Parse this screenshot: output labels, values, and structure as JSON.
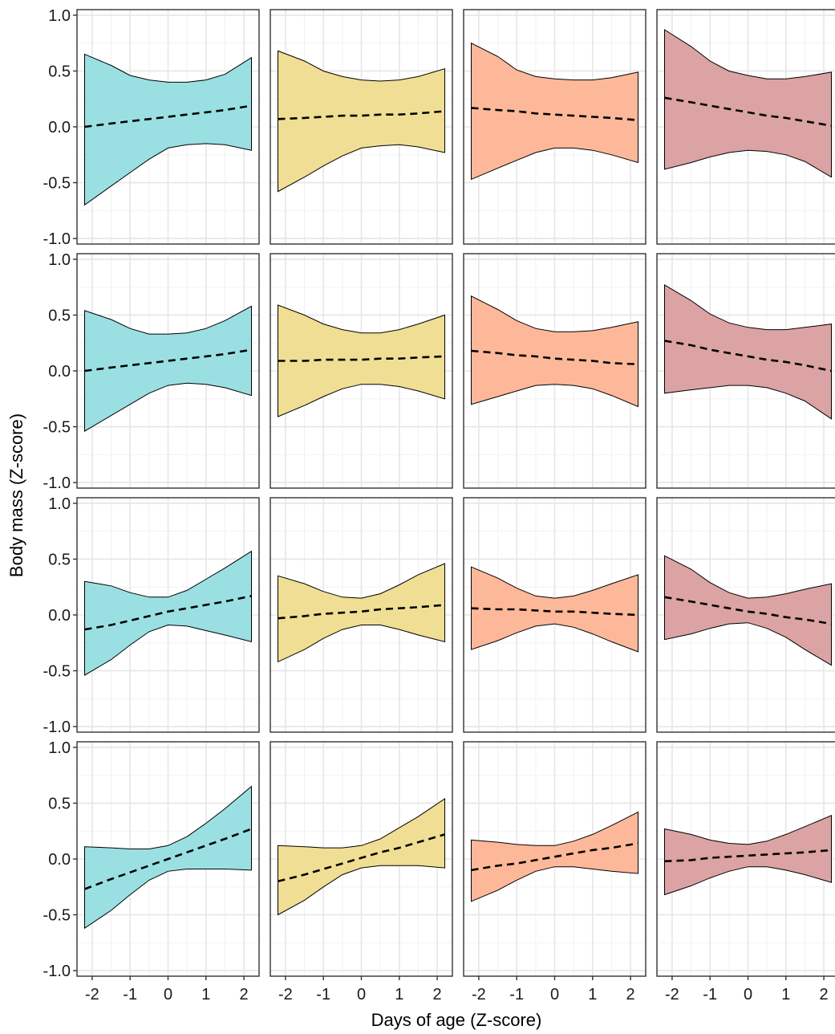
{
  "chart_data": {
    "type": "line",
    "layout": {
      "rows": 4,
      "cols": 4
    },
    "xlabel": "Days of age (Z-score)",
    "ylabel": "Body mass (Z-score)",
    "xlim": [
      -2.4,
      2.4
    ],
    "ylim": [
      -1.05,
      1.05
    ],
    "x_ticks": [
      -2,
      -1,
      0,
      1,
      2
    ],
    "x_tick_labels": [
      "-2",
      "-1",
      "0",
      "1",
      "2"
    ],
    "y_ticks": [
      -1,
      -0.5,
      0,
      0.5,
      1
    ],
    "y_tick_labels": [
      "-1.0",
      "-0.5",
      "0.0",
      "0.5",
      "1.0"
    ],
    "grid": true,
    "column_colors": [
      "#9ae0e3",
      "#f0de94",
      "#fdb89a",
      "#dba3a3"
    ],
    "line_color": "#000000",
    "panels": [
      [
        {
          "x": [
            -2.2,
            -1.5,
            -1.0,
            -0.5,
            0.0,
            0.5,
            1.0,
            1.5,
            2.2
          ],
          "fit": [
            0.0,
            0.03,
            0.05,
            0.07,
            0.09,
            0.11,
            0.13,
            0.15,
            0.19
          ],
          "lower": [
            -0.7,
            -0.53,
            -0.41,
            -0.29,
            -0.19,
            -0.16,
            -0.15,
            -0.16,
            -0.21
          ],
          "upper": [
            0.65,
            0.55,
            0.46,
            0.42,
            0.4,
            0.4,
            0.42,
            0.47,
            0.62
          ]
        },
        {
          "x": [
            -2.2,
            -1.5,
            -1.0,
            -0.5,
            0.0,
            0.5,
            1.0,
            1.5,
            2.2
          ],
          "fit": [
            0.07,
            0.08,
            0.09,
            0.1,
            0.1,
            0.11,
            0.11,
            0.12,
            0.14
          ],
          "lower": [
            -0.58,
            -0.45,
            -0.35,
            -0.26,
            -0.19,
            -0.17,
            -0.16,
            -0.18,
            -0.23
          ],
          "upper": [
            0.68,
            0.59,
            0.5,
            0.45,
            0.42,
            0.41,
            0.42,
            0.45,
            0.52
          ]
        },
        {
          "x": [
            -2.2,
            -1.5,
            -1.0,
            -0.5,
            0.0,
            0.5,
            1.0,
            1.5,
            2.2
          ],
          "fit": [
            0.17,
            0.15,
            0.14,
            0.12,
            0.11,
            0.1,
            0.09,
            0.08,
            0.06
          ],
          "lower": [
            -0.47,
            -0.37,
            -0.3,
            -0.23,
            -0.19,
            -0.19,
            -0.21,
            -0.25,
            -0.32
          ],
          "upper": [
            0.75,
            0.63,
            0.51,
            0.45,
            0.43,
            0.42,
            0.42,
            0.44,
            0.49
          ]
        },
        {
          "x": [
            -2.2,
            -1.5,
            -1.0,
            -0.5,
            0.0,
            0.5,
            1.0,
            1.5,
            2.2
          ],
          "fit": [
            0.26,
            0.22,
            0.19,
            0.16,
            0.13,
            0.1,
            0.08,
            0.05,
            0.01
          ],
          "lower": [
            -0.38,
            -0.32,
            -0.27,
            -0.23,
            -0.21,
            -0.22,
            -0.25,
            -0.31,
            -0.45
          ],
          "upper": [
            0.87,
            0.72,
            0.59,
            0.5,
            0.46,
            0.43,
            0.43,
            0.45,
            0.49
          ]
        }
      ],
      [
        {
          "x": [
            -2.2,
            -1.5,
            -1.0,
            -0.5,
            0.0,
            0.5,
            1.0,
            1.5,
            2.2
          ],
          "fit": [
            0.0,
            0.03,
            0.05,
            0.07,
            0.09,
            0.11,
            0.13,
            0.15,
            0.19
          ],
          "lower": [
            -0.54,
            -0.4,
            -0.3,
            -0.2,
            -0.13,
            -0.11,
            -0.12,
            -0.15,
            -0.22
          ],
          "upper": [
            0.54,
            0.46,
            0.38,
            0.33,
            0.33,
            0.34,
            0.38,
            0.45,
            0.58
          ]
        },
        {
          "x": [
            -2.2,
            -1.5,
            -1.0,
            -0.5,
            0.0,
            0.5,
            1.0,
            1.5,
            2.2
          ],
          "fit": [
            0.09,
            0.09,
            0.1,
            0.1,
            0.1,
            0.11,
            0.11,
            0.12,
            0.13
          ],
          "lower": [
            -0.41,
            -0.31,
            -0.23,
            -0.16,
            -0.12,
            -0.12,
            -0.14,
            -0.18,
            -0.25
          ],
          "upper": [
            0.59,
            0.5,
            0.42,
            0.37,
            0.34,
            0.34,
            0.37,
            0.42,
            0.5
          ]
        },
        {
          "x": [
            -2.2,
            -1.5,
            -1.0,
            -0.5,
            0.0,
            0.5,
            1.0,
            1.5,
            2.2
          ],
          "fit": [
            0.18,
            0.16,
            0.14,
            0.13,
            0.11,
            0.1,
            0.09,
            0.07,
            0.06
          ],
          "lower": [
            -0.3,
            -0.23,
            -0.18,
            -0.13,
            -0.12,
            -0.13,
            -0.16,
            -0.22,
            -0.32
          ],
          "upper": [
            0.67,
            0.55,
            0.45,
            0.38,
            0.35,
            0.35,
            0.36,
            0.39,
            0.44
          ]
        },
        {
          "x": [
            -2.2,
            -1.5,
            -1.0,
            -0.5,
            0.0,
            0.5,
            1.0,
            1.5,
            2.2
          ],
          "fit": [
            0.27,
            0.23,
            0.19,
            0.16,
            0.13,
            0.1,
            0.08,
            0.05,
            0.0
          ],
          "lower": [
            -0.2,
            -0.17,
            -0.15,
            -0.13,
            -0.13,
            -0.15,
            -0.2,
            -0.27,
            -0.43
          ],
          "upper": [
            0.77,
            0.63,
            0.51,
            0.43,
            0.39,
            0.37,
            0.37,
            0.39,
            0.42
          ]
        }
      ],
      [
        {
          "x": [
            -2.2,
            -1.5,
            -1.0,
            -0.5,
            0.0,
            0.5,
            1.0,
            1.5,
            2.2
          ],
          "fit": [
            -0.13,
            -0.09,
            -0.05,
            -0.01,
            0.03,
            0.06,
            0.09,
            0.12,
            0.17
          ],
          "lower": [
            -0.54,
            -0.4,
            -0.27,
            -0.15,
            -0.09,
            -0.1,
            -0.14,
            -0.18,
            -0.24
          ],
          "upper": [
            0.3,
            0.26,
            0.2,
            0.16,
            0.16,
            0.22,
            0.32,
            0.42,
            0.57
          ]
        },
        {
          "x": [
            -2.2,
            -1.5,
            -1.0,
            -0.5,
            0.0,
            0.5,
            1.0,
            1.5,
            2.2
          ],
          "fit": [
            -0.03,
            -0.01,
            0.01,
            0.02,
            0.03,
            0.05,
            0.06,
            0.07,
            0.09
          ],
          "lower": [
            -0.42,
            -0.31,
            -0.21,
            -0.13,
            -0.09,
            -0.09,
            -0.13,
            -0.18,
            -0.24
          ],
          "upper": [
            0.35,
            0.28,
            0.21,
            0.16,
            0.15,
            0.19,
            0.27,
            0.36,
            0.46
          ]
        },
        {
          "x": [
            -2.2,
            -1.5,
            -1.0,
            -0.5,
            0.0,
            0.5,
            1.0,
            1.5,
            2.2
          ],
          "fit": [
            0.06,
            0.05,
            0.05,
            0.04,
            0.03,
            0.03,
            0.02,
            0.01,
            0.0
          ],
          "lower": [
            -0.31,
            -0.23,
            -0.16,
            -0.1,
            -0.08,
            -0.11,
            -0.17,
            -0.24,
            -0.33
          ],
          "upper": [
            0.43,
            0.33,
            0.24,
            0.17,
            0.15,
            0.17,
            0.22,
            0.28,
            0.36
          ]
        },
        {
          "x": [
            -2.2,
            -1.5,
            -1.0,
            -0.5,
            0.0,
            0.5,
            1.0,
            1.5,
            2.2
          ],
          "fit": [
            0.16,
            0.12,
            0.09,
            0.06,
            0.03,
            0.01,
            -0.02,
            -0.04,
            -0.08
          ],
          "lower": [
            -0.22,
            -0.17,
            -0.12,
            -0.08,
            -0.07,
            -0.12,
            -0.2,
            -0.31,
            -0.45
          ],
          "upper": [
            0.53,
            0.41,
            0.29,
            0.2,
            0.15,
            0.16,
            0.19,
            0.23,
            0.28
          ]
        }
      ],
      [
        {
          "x": [
            -2.2,
            -1.5,
            -1.0,
            -0.5,
            0.0,
            0.5,
            1.0,
            1.5,
            2.2
          ],
          "fit": [
            -0.27,
            -0.18,
            -0.12,
            -0.06,
            0.0,
            0.06,
            0.12,
            0.18,
            0.27
          ],
          "lower": [
            -0.62,
            -0.46,
            -0.32,
            -0.19,
            -0.11,
            -0.09,
            -0.09,
            -0.09,
            -0.1
          ],
          "upper": [
            0.11,
            0.1,
            0.09,
            0.09,
            0.12,
            0.2,
            0.32,
            0.45,
            0.65
          ]
        },
        {
          "x": [
            -2.2,
            -1.5,
            -1.0,
            -0.5,
            0.0,
            0.5,
            1.0,
            1.5,
            2.2
          ],
          "fit": [
            -0.2,
            -0.14,
            -0.09,
            -0.04,
            0.01,
            0.06,
            0.1,
            0.15,
            0.22
          ],
          "lower": [
            -0.5,
            -0.37,
            -0.25,
            -0.14,
            -0.08,
            -0.06,
            -0.06,
            -0.06,
            -0.08
          ],
          "upper": [
            0.12,
            0.11,
            0.1,
            0.1,
            0.12,
            0.18,
            0.28,
            0.38,
            0.54
          ]
        },
        {
          "x": [
            -2.2,
            -1.5,
            -1.0,
            -0.5,
            0.0,
            0.5,
            1.0,
            1.5,
            2.2
          ],
          "fit": [
            -0.1,
            -0.06,
            -0.04,
            -0.01,
            0.02,
            0.05,
            0.08,
            0.1,
            0.14
          ],
          "lower": [
            -0.38,
            -0.28,
            -0.19,
            -0.11,
            -0.07,
            -0.07,
            -0.09,
            -0.11,
            -0.13
          ],
          "upper": [
            0.17,
            0.15,
            0.13,
            0.12,
            0.12,
            0.16,
            0.22,
            0.3,
            0.42
          ]
        },
        {
          "x": [
            -2.2,
            -1.5,
            -1.0,
            -0.5,
            0.0,
            0.5,
            1.0,
            1.5,
            2.2
          ],
          "fit": [
            -0.02,
            -0.01,
            0.01,
            0.02,
            0.03,
            0.04,
            0.05,
            0.06,
            0.08
          ],
          "lower": [
            -0.32,
            -0.24,
            -0.17,
            -0.11,
            -0.07,
            -0.07,
            -0.1,
            -0.14,
            -0.21
          ],
          "upper": [
            0.27,
            0.22,
            0.17,
            0.14,
            0.13,
            0.16,
            0.22,
            0.29,
            0.39
          ]
        }
      ]
    ]
  }
}
